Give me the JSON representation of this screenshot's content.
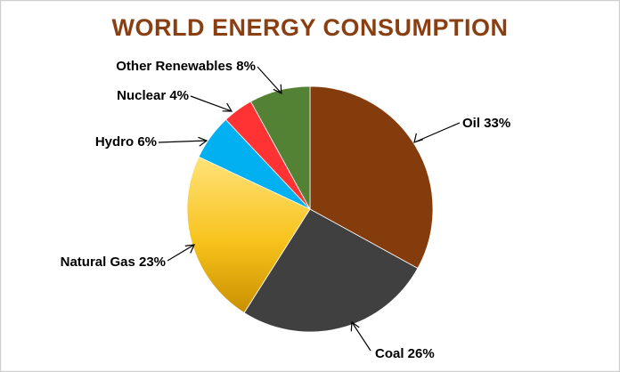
{
  "chart_data": {
    "type": "pie",
    "title": "WORLD ENERGY CONSUMPTION",
    "title_color": "#8a3f12",
    "slices": [
      {
        "label": "Oil 33%",
        "value": 33,
        "color": "#843c0c"
      },
      {
        "label": "Coal 26%",
        "value": 26,
        "color": "#404040"
      },
      {
        "label": "Natural Gas 23%",
        "value": 23,
        "color": "#f4b400"
      },
      {
        "label": "Hydro  6%",
        "value": 6,
        "color": "#00b0f0"
      },
      {
        "label": "Nuclear 4%",
        "value": 4,
        "color": "#ff3333"
      },
      {
        "label": "Other Renewables 8%",
        "value": 8,
        "color": "#548235"
      }
    ]
  }
}
